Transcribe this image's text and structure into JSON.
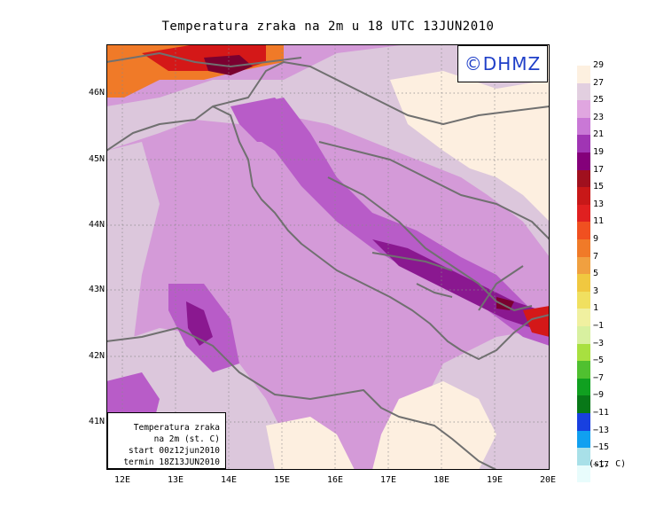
{
  "title": "Temperatura zraka na 2m u 18 UTC 13JUN2010",
  "copyright": "©DHMZ",
  "infobox": {
    "line1": "Temperatura zraka",
    "line2": "na 2m (st. C)",
    "line3": "start 00z12jun2010",
    "line4": "termin 18Z13JUN2010"
  },
  "y_ticks": [
    "46N",
    "45N",
    "44N",
    "43N",
    "42N",
    "41N"
  ],
  "x_ticks": [
    "12E",
    "13E",
    "14E",
    "15E",
    "16E",
    "17E",
    "18E",
    "19E",
    "20E"
  ],
  "legend": {
    "unit": "(st. C)",
    "labels": [
      "29",
      "27",
      "25",
      "23",
      "21",
      "19",
      "17",
      "15",
      "13",
      "11",
      "9",
      "7",
      "5",
      "3",
      "1",
      "−1",
      "−3",
      "−5",
      "−7",
      "−9",
      "−11",
      "−13",
      "−15",
      "−17"
    ],
    "colors": [
      "#fdf0e0",
      "#e2cfe0",
      "#e0a6e0",
      "#c978d6",
      "#a035b4",
      "#84007a",
      "#a0101e",
      "#c81818",
      "#e02020",
      "#f05020",
      "#f07a28",
      "#f0a040",
      "#f0c840",
      "#f0e060",
      "#f0f0a0",
      "#d8f0a0",
      "#a8e040",
      "#50c030",
      "#10a020",
      "#087818",
      "#1840e0",
      "#10a0f0",
      "#a8e0e8",
      "#e8fcfc"
    ]
  },
  "map": {
    "field_colors": {
      "base": "#d49ad8",
      "light": "#dcc7dc",
      "cream": "#fdefe0",
      "violet": "#b85cc8",
      "purple": "#8a1890",
      "darkred": "#7a0030",
      "red": "#d41818",
      "orange": "#f07a28"
    },
    "coast_color": "#707070",
    "grid_color": "#888888"
  }
}
